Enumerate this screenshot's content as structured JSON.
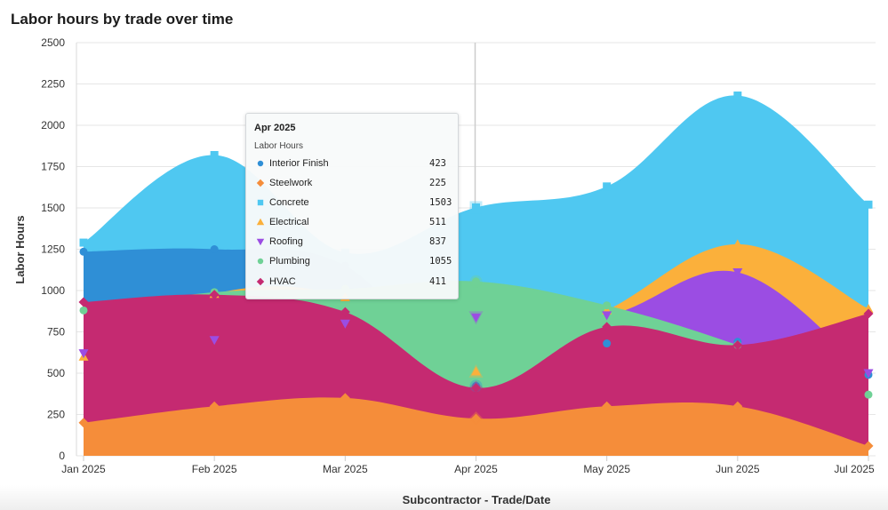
{
  "title": "Labor hours by trade over time",
  "chart_data": {
    "type": "area",
    "title": "Labor hours by trade over time",
    "xlabel": "Subcontractor - Trade/Date",
    "ylabel": "Labor Hours",
    "ylim": [
      0,
      2500
    ],
    "yticks": [
      0,
      250,
      500,
      750,
      1000,
      1250,
      1500,
      1750,
      2000,
      2250,
      2500
    ],
    "categories": [
      "Jan 2025",
      "Feb 2025",
      "Mar 2025",
      "Apr 2025",
      "May 2025",
      "Jun 2025",
      "Jul 2025"
    ],
    "grid": true,
    "series": [
      {
        "name": "Concrete",
        "marker": "square",
        "color": "#4fc8f1",
        "values": [
          1290,
          1820,
          1230,
          1503,
          1630,
          2180,
          1520
        ]
      },
      {
        "name": "Interior Finish",
        "marker": "circle",
        "color": "#2f8fd6",
        "values": [
          1235,
          1250,
          1150,
          423,
          680,
          690,
          490
        ]
      },
      {
        "name": "Electrical",
        "marker": "triangle",
        "color": "#fbb03b",
        "values": [
          600,
          980,
          960,
          511,
          880,
          1280,
          890
        ]
      },
      {
        "name": "Roofing",
        "marker": "triangle-down",
        "color": "#9b4de3",
        "values": [
          620,
          700,
          800,
          837,
          850,
          1110,
          500
        ]
      },
      {
        "name": "Plumbing",
        "marker": "circle",
        "color": "#6fd196",
        "values": [
          880,
          990,
          1010,
          1055,
          910,
          670,
          370
        ]
      },
      {
        "name": "HVAC",
        "marker": "diamond",
        "color": "#c52a71",
        "values": [
          930,
          975,
          870,
          411,
          780,
          670,
          860
        ]
      },
      {
        "name": "Steelwork",
        "marker": "diamond",
        "color": "#f58d3a",
        "values": [
          200,
          300,
          350,
          225,
          300,
          300,
          60
        ]
      }
    ],
    "hover_category": "Apr 2025"
  },
  "tooltip": {
    "title": "Apr 2025",
    "subtitle": "Labor Hours",
    "rows": [
      {
        "name": "Interior Finish",
        "value": "423",
        "color": "#2f8fd6",
        "marker": "circle"
      },
      {
        "name": "Steelwork",
        "value": "225",
        "color": "#f58d3a",
        "marker": "diamond"
      },
      {
        "name": "Concrete",
        "value": "1503",
        "color": "#4fc8f1",
        "marker": "square"
      },
      {
        "name": "Electrical",
        "value": "511",
        "color": "#fbb03b",
        "marker": "triangle"
      },
      {
        "name": "Roofing",
        "value": "837",
        "color": "#9b4de3",
        "marker": "triangle-down"
      },
      {
        "name": "Plumbing",
        "value": "1055",
        "color": "#6fd196",
        "marker": "circle"
      },
      {
        "name": "HVAC",
        "value": "411",
        "color": "#c52a71",
        "marker": "diamond"
      }
    ]
  }
}
